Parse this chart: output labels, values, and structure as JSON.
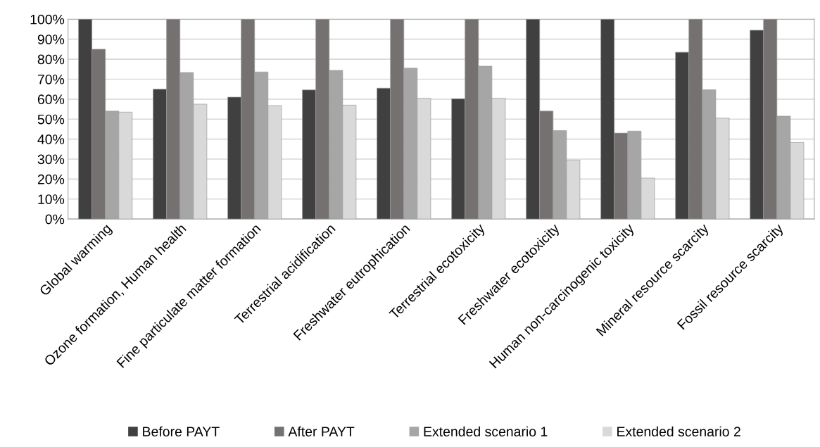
{
  "chart_data": {
    "type": "bar",
    "categories": [
      "Global warming",
      "Ozone formation, Human health",
      "Fine particulate matter formation",
      "Terrestrial acidification",
      "Freshwater eutrophication",
      "Terrestrial ecotoxicity",
      "Freshwater ecotoxicity",
      "Human non-carcinogenic toxicity",
      "Mineral resource scarcity",
      "Fossil resource scarcity"
    ],
    "series": [
      {
        "name": "Before PAYT",
        "color": "#404040",
        "values": [
          100,
          65,
          61,
          64.6,
          65.5,
          60.2,
          100,
          100,
          83.5,
          94.5
        ]
      },
      {
        "name": "After PAYT",
        "color": "#767171",
        "values": [
          85,
          100,
          100,
          100,
          100,
          100,
          54,
          43,
          100,
          100
        ]
      },
      {
        "name": "Extended scenario 1",
        "color": "#a6a6a6",
        "values": [
          54,
          73.3,
          73.6,
          74.4,
          75.5,
          76.5,
          44.3,
          44,
          64.7,
          51.5
        ]
      },
      {
        "name": "Extended scenario 2",
        "color": "#d9d9d9",
        "values": [
          53.5,
          57.5,
          56.8,
          57,
          60.5,
          60.5,
          29.5,
          20.5,
          50.5,
          38.3
        ]
      }
    ],
    "ylim": [
      0,
      100
    ],
    "yticks": [
      {
        "value": 0,
        "label": "0%"
      },
      {
        "value": 10,
        "label": "10%"
      },
      {
        "value": 20,
        "label": "20%"
      },
      {
        "value": 30,
        "label": "30%"
      },
      {
        "value": 40,
        "label": "40%"
      },
      {
        "value": 50,
        "label": "50%"
      },
      {
        "value": 60,
        "label": "60%"
      },
      {
        "value": 70,
        "label": "70%"
      },
      {
        "value": 80,
        "label": "80%"
      },
      {
        "value": 90,
        "label": "90%"
      },
      {
        "value": 100,
        "label": "100%"
      }
    ],
    "grid": "y",
    "legend": "bottom"
  }
}
